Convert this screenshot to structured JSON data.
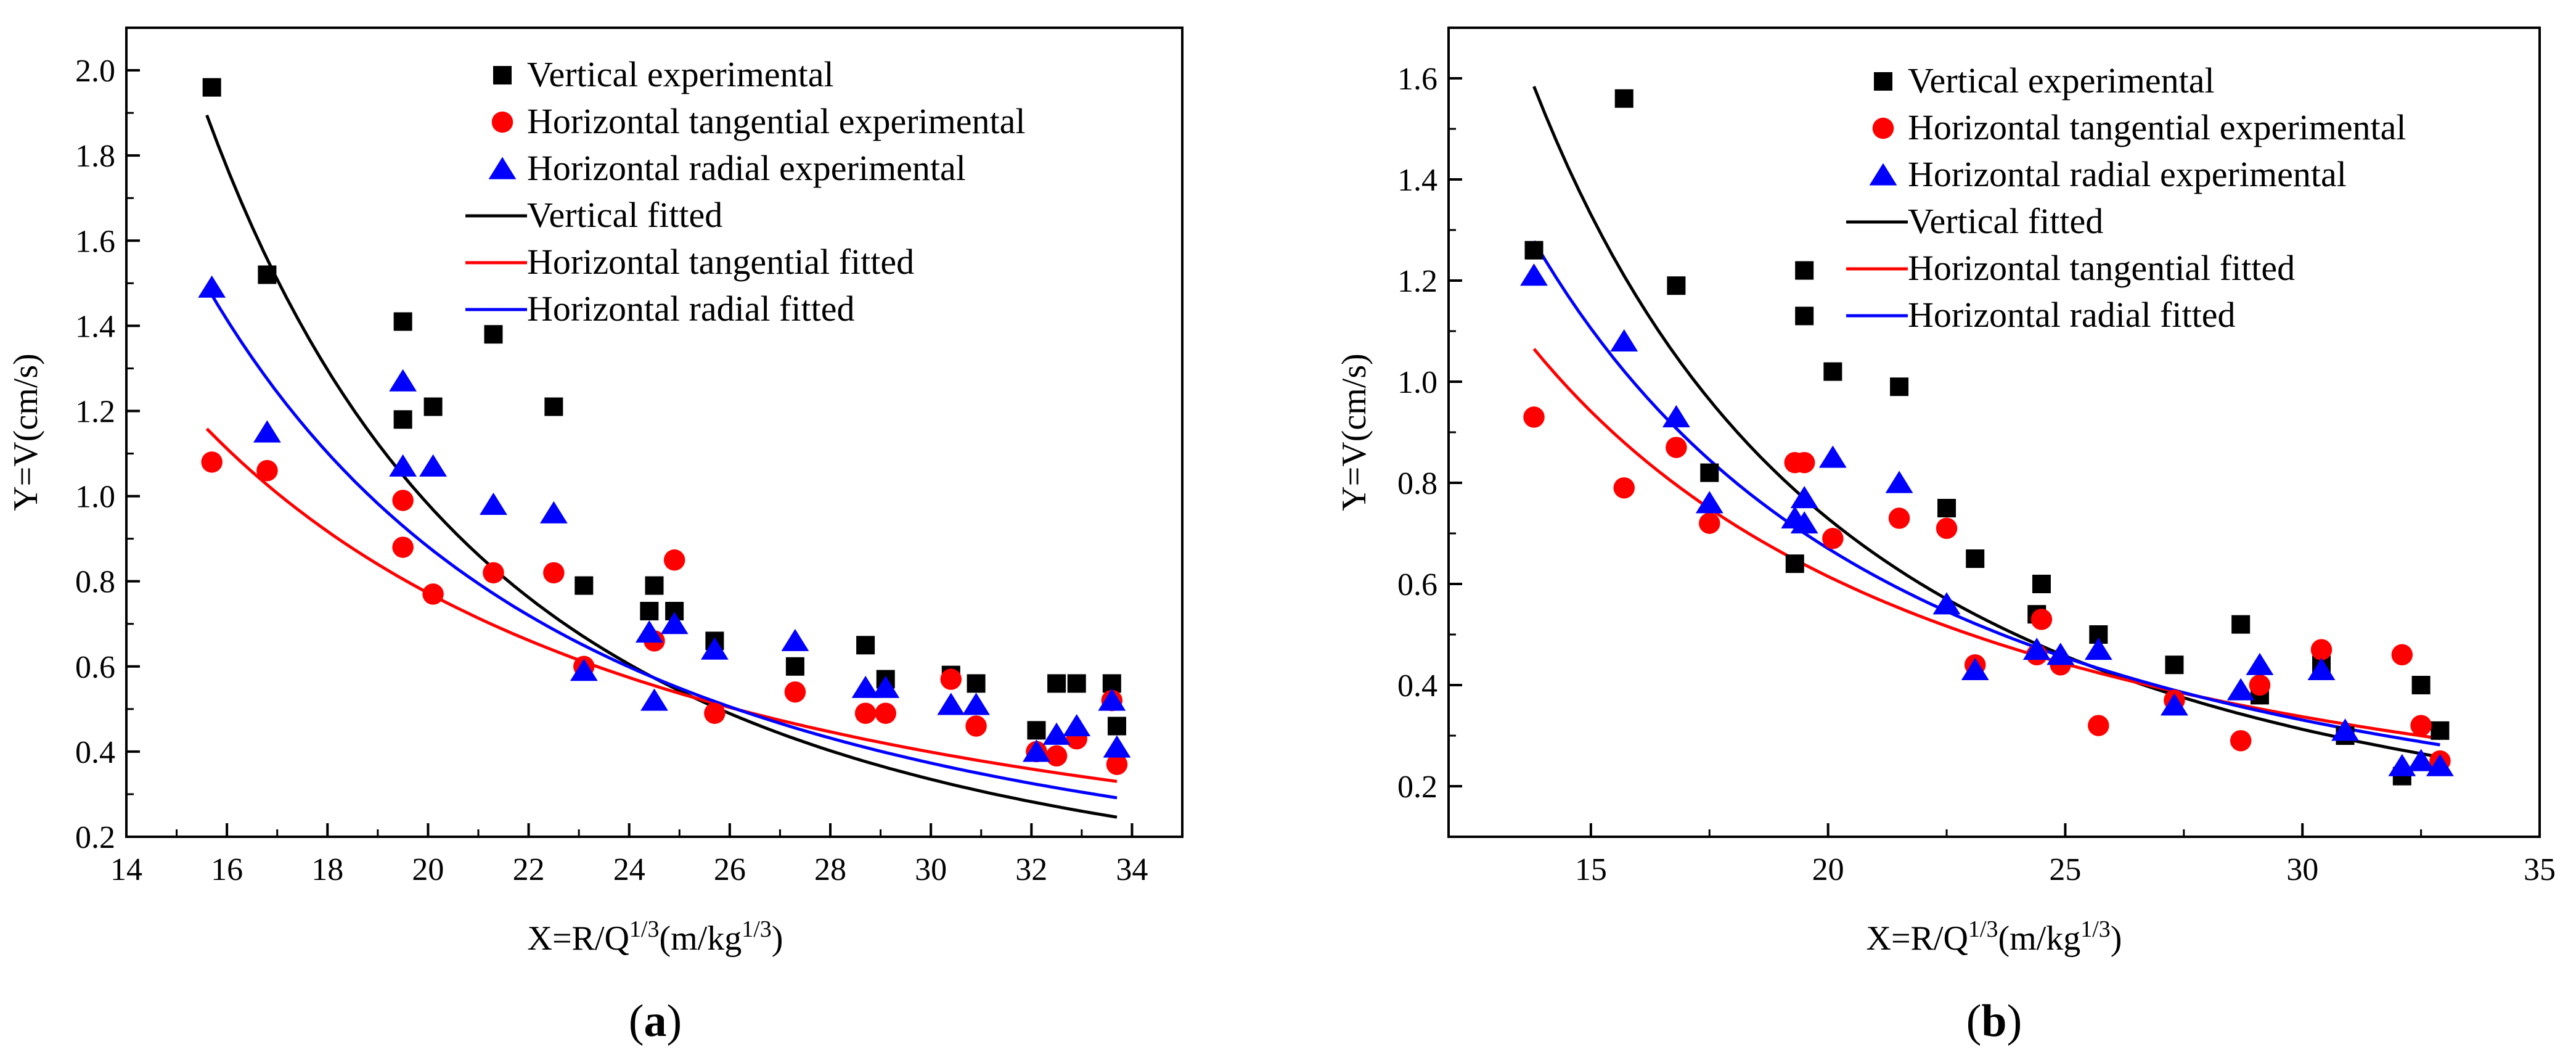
{
  "colors": {
    "vertical": "#000000",
    "tangential": "#ff0000",
    "radial": "#0000ff",
    "axis": "#000000"
  },
  "chart_data": [
    {
      "type": "scatter",
      "panel_label": {
        "open": "(",
        "letter": "a",
        "close": ")"
      },
      "xlabel": {
        "prefix": "X=R/Q",
        "sup1": "1/3",
        "mid": "(m/kg",
        "sup2": "1/3",
        "suffix": ")"
      },
      "ylabel": "Y=V(cm/s)",
      "xlim": [
        14,
        35
      ],
      "ylim": [
        0.2,
        2.1
      ],
      "xticks": [
        14,
        16,
        18,
        20,
        22,
        24,
        26,
        28,
        30,
        32,
        34
      ],
      "xtick_labels": [
        "14",
        "16",
        "18",
        "20",
        "22",
        "24",
        "26",
        "28",
        "30",
        "32",
        "34"
      ],
      "yticks": [
        0.2,
        0.4,
        0.6,
        0.8,
        1.0,
        1.2,
        1.4,
        1.6,
        1.8,
        2.0
      ],
      "ytick_labels": [
        "0.2",
        "0.4",
        "0.6",
        "0.8",
        "1.0",
        "1.2",
        "1.4",
        "1.6",
        "1.8",
        "2.0"
      ],
      "legend_position": "top-right",
      "series": [
        {
          "name": "Vertical experimental",
          "kind": "scatter",
          "marker": "square",
          "color": "#000000",
          "points": [
            [
              15.7,
              1.96
            ],
            [
              16.8,
              1.52
            ],
            [
              19.5,
              1.41
            ],
            [
              19.5,
              1.18
            ],
            [
              20.1,
              1.21
            ],
            [
              21.3,
              1.38
            ],
            [
              22.5,
              1.21
            ],
            [
              23.1,
              0.79
            ],
            [
              24.4,
              0.73
            ],
            [
              24.5,
              0.79
            ],
            [
              24.9,
              0.73
            ],
            [
              25.7,
              0.66
            ],
            [
              27.3,
              0.6
            ],
            [
              28.7,
              0.65
            ],
            [
              29.1,
              0.57
            ],
            [
              30.4,
              0.58
            ],
            [
              30.9,
              0.56
            ],
            [
              32.1,
              0.45
            ],
            [
              32.5,
              0.56
            ],
            [
              32.9,
              0.56
            ],
            [
              33.6,
              0.56
            ],
            [
              33.7,
              0.46
            ]
          ]
        },
        {
          "name": "Horizontal tangential experimental",
          "kind": "scatter",
          "marker": "circle",
          "color": "#ff0000",
          "points": [
            [
              15.7,
              1.08
            ],
            [
              16.8,
              1.06
            ],
            [
              19.5,
              0.99
            ],
            [
              19.5,
              0.88
            ],
            [
              20.1,
              0.77
            ],
            [
              21.3,
              0.82
            ],
            [
              22.5,
              0.82
            ],
            [
              23.1,
              0.6
            ],
            [
              24.5,
              0.66
            ],
            [
              24.9,
              0.85
            ],
            [
              25.7,
              0.49
            ],
            [
              27.3,
              0.54
            ],
            [
              28.7,
              0.49
            ],
            [
              29.1,
              0.49
            ],
            [
              30.4,
              0.57
            ],
            [
              30.9,
              0.46
            ],
            [
              32.1,
              0.4
            ],
            [
              32.5,
              0.39
            ],
            [
              32.9,
              0.43
            ],
            [
              33.6,
              0.52
            ],
            [
              33.7,
              0.37
            ]
          ]
        },
        {
          "name": "Horizontal radial experimental",
          "kind": "scatter",
          "marker": "triangle",
          "color": "#0000ff",
          "points": [
            [
              15.7,
              1.49
            ],
            [
              16.8,
              1.15
            ],
            [
              19.5,
              1.27
            ],
            [
              19.5,
              1.07
            ],
            [
              20.1,
              1.07
            ],
            [
              21.3,
              0.98
            ],
            [
              22.5,
              0.96
            ],
            [
              23.1,
              0.59
            ],
            [
              24.4,
              0.68
            ],
            [
              24.5,
              0.52
            ],
            [
              24.9,
              0.7
            ],
            [
              25.7,
              0.64
            ],
            [
              27.3,
              0.66
            ],
            [
              28.7,
              0.55
            ],
            [
              29.1,
              0.55
            ],
            [
              30.4,
              0.51
            ],
            [
              30.9,
              0.51
            ],
            [
              32.1,
              0.4
            ],
            [
              32.5,
              0.44
            ],
            [
              32.9,
              0.46
            ],
            [
              33.6,
              0.52
            ],
            [
              33.7,
              0.41
            ]
          ]
        },
        {
          "name": "Vertical fitted",
          "kind": "line",
          "color": "#000000",
          "fit": {
            "a": 2750,
            "b": -2.65,
            "x0": 15.6,
            "x1": 33.7
          }
        },
        {
          "name": "Horizontal tangential fitted",
          "kind": "line",
          "color": "#ff0000",
          "fit": {
            "a": 102,
            "b": -1.63,
            "x0": 15.6,
            "x1": 33.7
          }
        },
        {
          "name": "Horizontal radial fitted",
          "kind": "line",
          "color": "#0000ff",
          "fit": {
            "a": 505,
            "b": -2.12,
            "x0": 15.6,
            "x1": 33.7
          }
        }
      ]
    },
    {
      "type": "scatter",
      "panel_label": {
        "open": "(",
        "letter": "b",
        "close": ")"
      },
      "xlabel": {
        "prefix": "X=R/Q",
        "sup1": "1/3",
        "mid": "(m/kg",
        "sup2": "1/3",
        "suffix": ")"
      },
      "ylabel": "Y=V(cm/s)",
      "xlim": [
        12,
        35
      ],
      "ylim": [
        0.1,
        1.7
      ],
      "xticks": [
        15,
        20,
        25,
        30,
        35
      ],
      "xtick_labels": [
        "15",
        "20",
        "25",
        "30",
        "35"
      ],
      "yticks": [
        0.2,
        0.4,
        0.6,
        0.8,
        1.0,
        1.2,
        1.4,
        1.6
      ],
      "ytick_labels": [
        "0.2",
        "0.4",
        "0.6",
        "0.8",
        "1.0",
        "1.2",
        "1.4",
        "1.6"
      ],
      "legend_position": "top-right",
      "series": [
        {
          "name": "Vertical experimental",
          "kind": "scatter",
          "marker": "square",
          "color": "#000000",
          "points": [
            [
              13.8,
              1.26
            ],
            [
              15.7,
              1.56
            ],
            [
              16.8,
              1.19
            ],
            [
              17.5,
              0.82
            ],
            [
              19.3,
              0.64
            ],
            [
              19.5,
              1.22
            ],
            [
              19.5,
              1.13
            ],
            [
              20.1,
              1.02
            ],
            [
              21.5,
              0.99
            ],
            [
              22.5,
              0.75
            ],
            [
              23.1,
              0.65
            ],
            [
              24.4,
              0.54
            ],
            [
              24.5,
              0.6
            ],
            [
              25.7,
              0.5
            ],
            [
              27.3,
              0.44
            ],
            [
              28.7,
              0.52
            ],
            [
              29.1,
              0.38
            ],
            [
              30.4,
              0.44
            ],
            [
              30.9,
              0.3
            ],
            [
              32.1,
              0.22
            ],
            [
              32.5,
              0.4
            ],
            [
              32.9,
              0.31
            ]
          ]
        },
        {
          "name": "Horizontal tangential experimental",
          "kind": "scatter",
          "marker": "circle",
          "color": "#ff0000",
          "points": [
            [
              13.8,
              0.93
            ],
            [
              15.7,
              0.79
            ],
            [
              16.8,
              0.87
            ],
            [
              17.5,
              0.72
            ],
            [
              19.3,
              0.84
            ],
            [
              19.5,
              0.84
            ],
            [
              20.1,
              0.69
            ],
            [
              21.5,
              0.73
            ],
            [
              22.5,
              0.71
            ],
            [
              23.1,
              0.44
            ],
            [
              24.4,
              0.46
            ],
            [
              24.5,
              0.53
            ],
            [
              24.9,
              0.44
            ],
            [
              25.7,
              0.32
            ],
            [
              27.3,
              0.37
            ],
            [
              28.7,
              0.29
            ],
            [
              29.1,
              0.4
            ],
            [
              30.4,
              0.47
            ],
            [
              32.1,
              0.46
            ],
            [
              32.5,
              0.32
            ],
            [
              32.9,
              0.25
            ]
          ]
        },
        {
          "name": "Horizontal radial experimental",
          "kind": "scatter",
          "marker": "triangle",
          "color": "#0000ff",
          "points": [
            [
              13.8,
              1.21
            ],
            [
              15.7,
              1.08
            ],
            [
              16.8,
              0.93
            ],
            [
              17.5,
              0.76
            ],
            [
              19.3,
              0.73
            ],
            [
              19.5,
              0.77
            ],
            [
              19.5,
              0.72
            ],
            [
              20.1,
              0.85
            ],
            [
              21.5,
              0.8
            ],
            [
              22.5,
              0.56
            ],
            [
              23.1,
              0.43
            ],
            [
              24.4,
              0.47
            ],
            [
              24.9,
              0.46
            ],
            [
              25.7,
              0.47
            ],
            [
              27.3,
              0.36
            ],
            [
              28.7,
              0.39
            ],
            [
              29.1,
              0.44
            ],
            [
              30.4,
              0.43
            ],
            [
              30.9,
              0.31
            ],
            [
              32.1,
              0.24
            ],
            [
              32.5,
              0.25
            ],
            [
              32.9,
              0.24
            ]
          ]
        },
        {
          "name": "Vertical fitted",
          "kind": "line",
          "color": "#000000",
          "fit": {
            "a": 382,
            "b": -2.09,
            "x0": 13.8,
            "x1": 32.9
          }
        },
        {
          "name": "Horizontal tangential fitted",
          "kind": "line",
          "color": "#ff0000",
          "fit": {
            "a": 51.8,
            "b": -1.48,
            "x0": 13.8,
            "x1": 32.9
          }
        },
        {
          "name": "Horizontal radial fitted",
          "kind": "line",
          "color": "#0000ff",
          "fit": {
            "a": 123,
            "b": -1.74,
            "x0": 13.8,
            "x1": 32.9
          }
        }
      ]
    }
  ]
}
